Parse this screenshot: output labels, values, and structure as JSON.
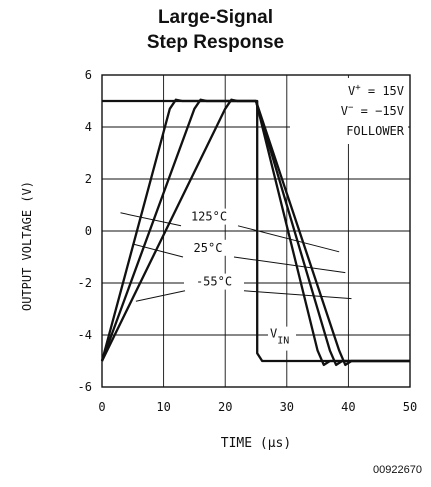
{
  "chart_data": {
    "type": "line",
    "title_line1": "Large-Signal",
    "title_line2": "Step Response",
    "xlabel": "TIME (µs)",
    "ylabel": "OUTPUT VOLTAGE (V)",
    "xlim": [
      0,
      50
    ],
    "ylim": [
      -6,
      6
    ],
    "xticks": [
      "0",
      "10",
      "20",
      "30",
      "40",
      "50"
    ],
    "yticks": [
      "6",
      "4",
      "2",
      "0",
      "-2",
      "-4",
      "-6"
    ],
    "grid": true,
    "conditions": {
      "vplus_main": "V",
      "vplus_sup": "+",
      "vplus_val": " = 15V",
      "vminus_main": "V",
      "vminus_sup": "−",
      "vminus_val": " = −15V",
      "mode": "FOLLOWER"
    },
    "series": [
      {
        "name": "V_IN",
        "x": [
          0,
          25.2,
          25.2,
          26,
          50
        ],
        "y": [
          5,
          5,
          -4.7,
          -5,
          -5
        ]
      },
      {
        "name": "125°C",
        "x": [
          0,
          11,
          12,
          13,
          25,
          35,
          36,
          37,
          50
        ],
        "y": [
          -5,
          4.7,
          5.05,
          5,
          5,
          -4.6,
          -5.15,
          -5,
          -5
        ]
      },
      {
        "name": "25°C",
        "x": [
          0,
          15,
          16,
          17,
          25,
          37,
          38,
          39,
          50
        ],
        "y": [
          -5,
          4.7,
          5.05,
          5,
          5,
          -4.6,
          -5.15,
          -5,
          -5
        ]
      },
      {
        "name": "-55°C",
        "x": [
          0,
          20,
          21,
          22,
          25,
          38.5,
          39.5,
          40.5,
          50
        ],
        "y": [
          -5,
          4.7,
          5.05,
          5,
          5,
          -4.6,
          -5.15,
          -5,
          -5
        ]
      }
    ],
    "annotations": {
      "t125": "125°C",
      "t25": "25°C",
      "tm55": "-55°C",
      "vin_main": "V",
      "vin_sub": "IN"
    }
  },
  "figure_number": "00922670"
}
